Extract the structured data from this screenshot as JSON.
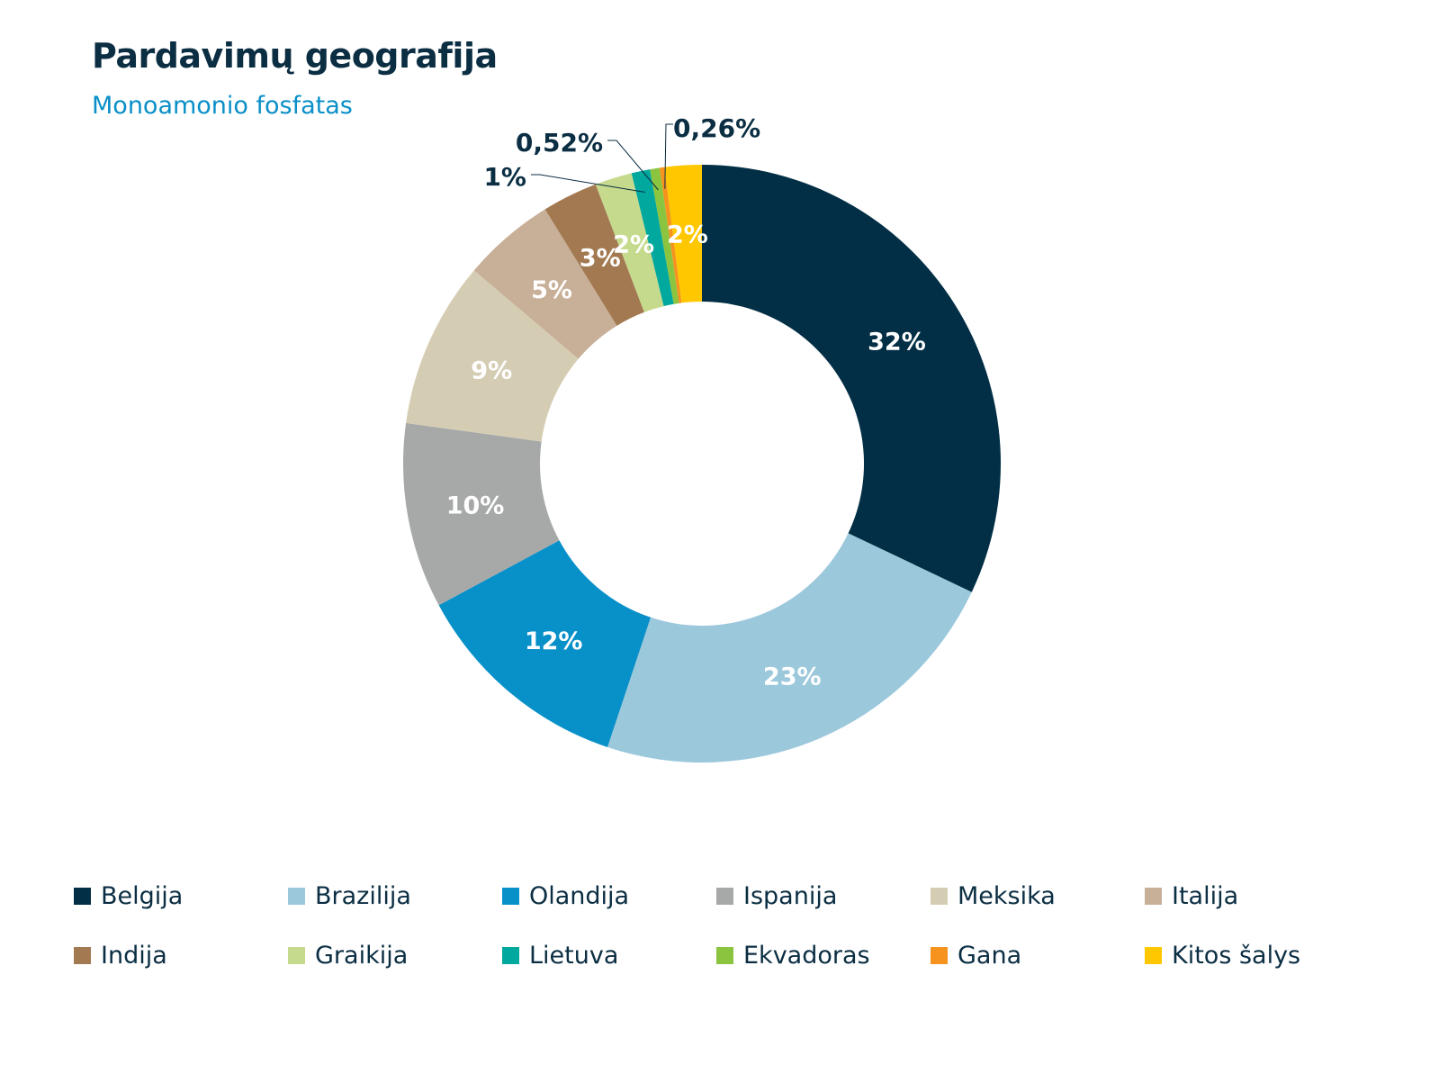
{
  "chart_data": {
    "type": "donut",
    "title": "Pardavimų geografija",
    "subtitle": "Monoamonio fosfatas",
    "legend_position": "bottom",
    "slices": [
      {
        "name": "Belgija",
        "value": 32,
        "label": "32%",
        "color": "#022f45"
      },
      {
        "name": "Brazilija",
        "value": 23,
        "label": "23%",
        "color": "#9cc8dc"
      },
      {
        "name": "Olandija",
        "value": 12,
        "label": "12%",
        "color": "#0890c9"
      },
      {
        "name": "Ispanija",
        "value": 10,
        "label": "10%",
        "color": "#a7a9a9"
      },
      {
        "name": "Meksika",
        "value": 9,
        "label": "9%",
        "color": "#d5cdb3"
      },
      {
        "name": "Italija",
        "value": 5,
        "label": "5%",
        "color": "#c8af98"
      },
      {
        "name": "Indija",
        "value": 3,
        "label": "3%",
        "color": "#a37951"
      },
      {
        "name": "Graikija",
        "value": 2,
        "label": "2%",
        "color": "#c6da8d"
      },
      {
        "name": "Lietuva",
        "value": 1,
        "label": "1%",
        "color": "#00a89d"
      },
      {
        "name": "Ekvadoras",
        "value": 0.52,
        "label": "0,52%",
        "color": "#8bc43f"
      },
      {
        "name": "Gana",
        "value": 0.26,
        "label": "0,26%",
        "color": "#f6921e"
      },
      {
        "name": "Kitos šalys",
        "value": 2,
        "label": "2%",
        "color": "#ffc700"
      }
    ]
  }
}
